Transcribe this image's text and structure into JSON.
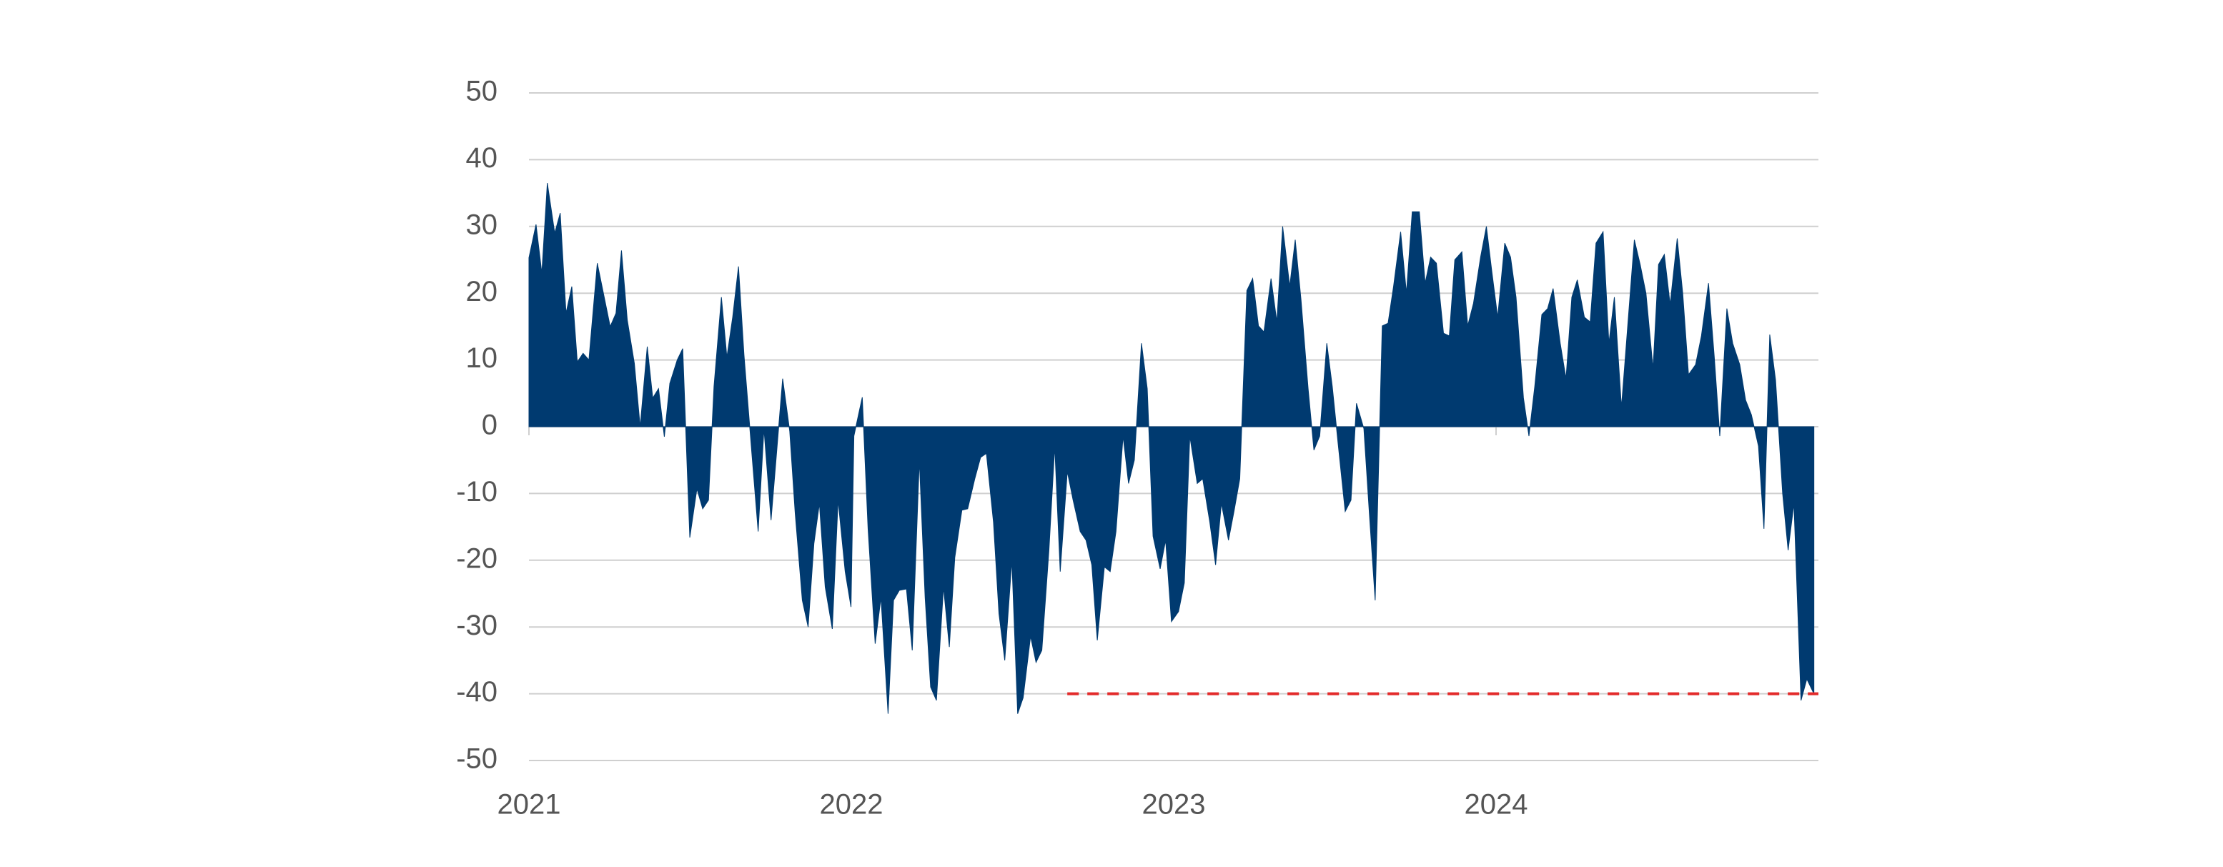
{
  "chart_data": {
    "type": "area",
    "color": "#003a70",
    "xlim": [
      2021,
      2025
    ],
    "xticks": [
      2021,
      2022,
      2023,
      2024
    ],
    "ylim": [
      -50,
      50
    ],
    "yticks": [
      -50,
      -40,
      -30,
      -20,
      -10,
      0,
      10,
      20,
      30,
      40,
      50
    ],
    "grid": true,
    "reference_line": {
      "value": -40,
      "x_start": 2022.67,
      "color": "#e32b2b",
      "style": "dashed"
    },
    "x": [
      2021.0,
      2021.022,
      2021.04,
      2021.057,
      2021.08,
      2021.097,
      2021.115,
      2021.133,
      2021.15,
      2021.168,
      2021.186,
      2021.212,
      2021.252,
      2021.27,
      2021.287,
      2021.305,
      2021.327,
      2021.345,
      2021.367,
      2021.384,
      2021.402,
      2021.42,
      2021.437,
      2021.46,
      2021.477,
      2021.499,
      2021.521,
      2021.539,
      2021.557,
      2021.574,
      2021.597,
      2021.614,
      2021.632,
      2021.65,
      2021.667,
      2021.689,
      2021.711,
      2021.729,
      2021.751,
      2021.787,
      2021.809,
      2021.826,
      2021.848,
      2021.866,
      2021.884,
      2021.901,
      2021.919,
      2021.941,
      2021.959,
      2021.981,
      2021.999,
      2022.008,
      2022.034,
      2022.052,
      2022.074,
      2022.092,
      2022.114,
      2022.131,
      2022.149,
      2022.171,
      2022.189,
      2022.211,
      2022.229,
      2022.246,
      2022.264,
      2022.286,
      2022.304,
      2022.321,
      2022.343,
      2022.361,
      2022.383,
      2022.401,
      2022.419,
      2022.441,
      2022.458,
      2022.476,
      2022.498,
      2022.516,
      2022.533,
      2022.556,
      2022.573,
      2022.591,
      2022.613,
      2022.631,
      2022.648,
      2022.67,
      2022.688,
      2022.71,
      2022.728,
      2022.746,
      2022.763,
      2022.785,
      2022.803,
      2022.821,
      2022.843,
      2022.86,
      2022.878,
      2022.9,
      2022.918,
      2022.936,
      2022.958,
      2022.975,
      2022.993,
      2023.015,
      2023.033,
      2023.05,
      2023.073,
      2023.09,
      2023.112,
      2023.13,
      2023.148,
      2023.17,
      2023.187,
      2023.205,
      2023.227,
      2023.245,
      2023.263,
      2023.28,
      2023.302,
      2023.32,
      2023.338,
      2023.36,
      2023.377,
      2023.395,
      2023.417,
      2023.435,
      2023.453,
      2023.475,
      2023.492,
      2023.51,
      2023.532,
      2023.55,
      2023.567,
      2023.59,
      2023.607,
      2023.625,
      2023.647,
      2023.665,
      2023.682,
      2023.704,
      2023.722,
      2023.74,
      2023.762,
      2023.78,
      2023.797,
      2023.815,
      2023.837,
      2023.855,
      2023.872,
      2023.894,
      2023.912,
      2023.93,
      2023.952,
      2023.97,
      2023.987,
      2024.005,
      2024.027,
      2024.045,
      2024.062,
      2024.085,
      2024.102,
      2024.12,
      2024.142,
      2024.16,
      2024.177,
      2024.199,
      2024.217,
      2024.235,
      2024.252,
      2024.274,
      2024.292,
      2024.31,
      2024.332,
      2024.35,
      2024.367,
      2024.389,
      2024.407,
      2024.429,
      2024.447,
      2024.465,
      2024.487,
      2024.504,
      2024.522,
      2024.54,
      2024.562,
      2024.579,
      2024.597,
      2024.619,
      2024.637,
      2024.659,
      2024.677,
      2024.694,
      2024.716,
      2024.734,
      2024.756,
      2024.774,
      2024.792,
      2024.814,
      2024.831,
      2024.849,
      2024.867,
      2024.889,
      2024.906,
      2024.924,
      2024.946,
      2024.964,
      2024.986
    ],
    "values": [
      25.3,
      30.3,
      23,
      36.5,
      29,
      32,
      17,
      21,
      9.7,
      11,
      10,
      24.5,
      15,
      17,
      26.4,
      16,
      9.5,
      0,
      12,
      4.3,
      5.7,
      -1.5,
      6.5,
      10,
      11.7,
      -16.6,
      -9.3,
      -12.3,
      -11,
      6,
      19.4,
      10.4,
      16.4,
      24,
      10.8,
      -2.5,
      -15.7,
      -0.3,
      -14,
      7.2,
      -0.7,
      -13,
      -26,
      -30,
      -17.5,
      -11.5,
      -24,
      -30.3,
      -11,
      -21.7,
      -27,
      -1.4,
      4.4,
      -15.3,
      -32.5,
      -25.6,
      -43,
      -26,
      -24.5,
      -24.3,
      -33.5,
      -5,
      -25.6,
      -39,
      -41,
      -24,
      -33,
      -19.6,
      -12.5,
      -12.3,
      -7.8,
      -4.6,
      -4,
      -14.3,
      -28,
      -35,
      -20,
      -43,
      -40.6,
      -31.4,
      -35.3,
      -33.5,
      -18.5,
      -2.9,
      -21.7,
      -6.7,
      -11,
      -15.7,
      -17,
      -20.7,
      -32,
      -21,
      -21.7,
      -15.7,
      -1.4,
      -8.5,
      -5,
      12.5,
      5.7,
      -16.4,
      -21.3,
      -17,
      -29.2,
      -27.7,
      -23.4,
      -1.4,
      -8.5,
      -7.8,
      -14.3,
      -20.7,
      -11.5,
      -17,
      -12.7,
      -7.8,
      20.4,
      22.2,
      15.1,
      14.2,
      22.2,
      15.7,
      30,
      21,
      28,
      19,
      5.7,
      -3.5,
      -1.4,
      12.5,
      6,
      -2.5,
      -12.7,
      -11,
      3.5,
      -0.3,
      -13,
      -26,
      15.1,
      15.5,
      21,
      29.2,
      20,
      32.2,
      32.2,
      21.5,
      25.4,
      24.5,
      14,
      13.6,
      25,
      26.2,
      15.1,
      18.5,
      25.4,
      30,
      23.2,
      16.4,
      27.5,
      25.4,
      19.4,
      4.3,
      -1.4,
      6,
      16.8,
      17.7,
      20.7,
      12.5,
      7.2,
      19.4,
      22,
      16.4,
      15.7,
      27.5,
      29.2,
      12.5,
      19.4,
      2.9,
      14.2,
      28,
      24.3,
      20,
      8.7,
      24.3,
      25.8,
      18.3,
      28.2,
      20,
      7.8,
      9.3,
      13.6,
      21.5,
      10.4,
      -1.4,
      17.7,
      12.5,
      9.3,
      4,
      1.8,
      -2.9,
      -15.3,
      13.8,
      7,
      -10,
      -18.5,
      -11.5,
      -41,
      -37.8,
      -40
    ]
  }
}
